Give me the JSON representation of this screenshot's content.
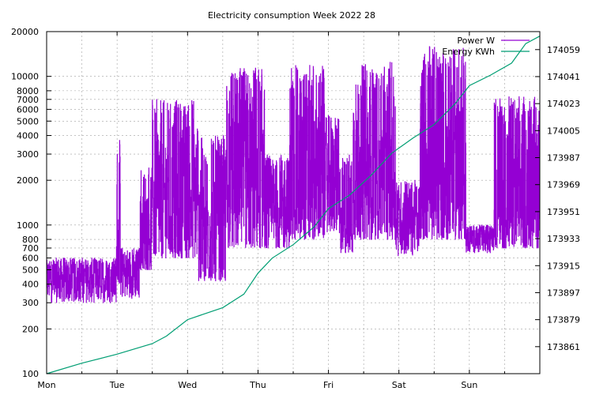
{
  "chart_data": {
    "type": "line",
    "title": "Electricity consumption Week 2022 28",
    "xlabel": "",
    "ylabel": "",
    "x_ticks": [
      "Mon",
      "Tue",
      "Wed",
      "Thu",
      "Fri",
      "Sat",
      "Sun"
    ],
    "xlim": [
      0,
      7
    ],
    "y_left": {
      "scale": "log",
      "ylim": [
        100,
        20000
      ],
      "ticks": [
        100,
        200,
        300,
        400,
        500,
        600,
        700,
        800,
        1000,
        2000,
        3000,
        4000,
        5000,
        6000,
        7000,
        8000,
        10000,
        20000
      ],
      "tick_labels": [
        "100",
        "200",
        "300",
        "400",
        "500",
        "600",
        "700",
        "800",
        "1000",
        "2000",
        "3000",
        "4000",
        "5000",
        "6000",
        "7000",
        "8000",
        "10000",
        "20000"
      ]
    },
    "y_right": {
      "scale": "linear",
      "ylim": [
        173843,
        174071
      ],
      "ticks": [
        173861,
        173879,
        173897,
        173915,
        173933,
        173951,
        173969,
        173987,
        174005,
        174023,
        174041,
        174059
      ],
      "tick_labels": [
        "173861",
        "173879",
        "173897",
        "173915",
        "173933",
        "173951",
        "173969",
        "173987",
        "174005",
        "174023",
        "174041",
        "174059"
      ]
    },
    "grid": true,
    "legend_placement": "top-right",
    "series": [
      {
        "name": "Power W",
        "axis": "left",
        "color": "#9400d3",
        "segments": [
          {
            "x": [
              0.0,
              0.99
            ],
            "low": 300,
            "high": 600
          },
          {
            "x": [
              0.99,
              1.05
            ],
            "low": 400,
            "high": 4000
          },
          {
            "x": [
              1.05,
              1.32
            ],
            "low": 320,
            "high": 700
          },
          {
            "x": [
              1.32,
              1.5
            ],
            "low": 500,
            "high": 2500
          },
          {
            "x": [
              1.5,
              2.15
            ],
            "low": 600,
            "high": 7000
          },
          {
            "x": [
              2.15,
              2.55
            ],
            "low": 420,
            "high": 4000
          },
          {
            "x": [
              2.55,
              3.1
            ],
            "low": 700,
            "high": 11500
          },
          {
            "x": [
              3.1,
              3.45
            ],
            "low": 700,
            "high": 3000
          },
          {
            "x": [
              3.45,
              3.95
            ],
            "low": 800,
            "high": 12000
          },
          {
            "x": [
              3.95,
              4.15
            ],
            "low": 900,
            "high": 5500
          },
          {
            "x": [
              4.15,
              4.35
            ],
            "low": 650,
            "high": 3000
          },
          {
            "x": [
              4.35,
              4.95
            ],
            "low": 800,
            "high": 12500
          },
          {
            "x": [
              4.95,
              5.3
            ],
            "low": 620,
            "high": 2000
          },
          {
            "x": [
              5.3,
              5.95
            ],
            "low": 800,
            "high": 16000
          },
          {
            "x": [
              5.95,
              6.35
            ],
            "low": 650,
            "high": 1000
          },
          {
            "x": [
              6.35,
              7.0
            ],
            "low": 700,
            "high": 7500
          }
        ]
      },
      {
        "name": "Energy KWh",
        "axis": "right",
        "color": "#009e73",
        "x": [
          0.0,
          0.5,
          1.0,
          1.5,
          1.7,
          2.0,
          2.5,
          2.8,
          3.0,
          3.2,
          3.5,
          3.8,
          4.0,
          4.3,
          4.6,
          4.9,
          5.2,
          5.5,
          5.8,
          6.0,
          6.3,
          6.6,
          6.8,
          7.0
        ],
        "values": [
          173843,
          173850,
          173856,
          173863,
          173868,
          173879,
          173887,
          173896,
          173910,
          173920,
          173929,
          173941,
          173953,
          173962,
          173975,
          173990,
          174000,
          174009,
          174023,
          174035,
          174042,
          174050,
          174063,
          174068
        ]
      }
    ]
  }
}
